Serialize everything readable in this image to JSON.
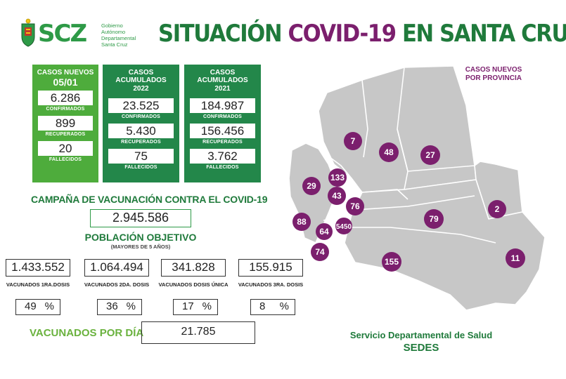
{
  "logo": {
    "mark": "SCZ",
    "gov_line1": "Gobierno",
    "gov_line2": "Autónomo",
    "gov_line3": "Departamental",
    "gov_line4": "Santa Cruz",
    "crest_icon": "coat-of-arms-icon"
  },
  "title": {
    "part1": "SITUACIÓN",
    "part2": "COVID-19",
    "part3": "EN SANTA CRUZ",
    "color_green": "#1f7a3b",
    "color_purple": "#7b1f6d"
  },
  "daily": {
    "header": "CASOS NUEVOS",
    "date": "05/01",
    "confirmed": "6.286",
    "confirmed_label": "CONFIRMADOS",
    "recovered": "899",
    "recovered_label": "RECUPERADOS",
    "deaths": "20",
    "deaths_label": "FALLECIDOS"
  },
  "acc2022": {
    "header": "CASOS ACUMULADOS",
    "year": "2022",
    "confirmed": "23.525",
    "confirmed_label": "CONFIRMADOS",
    "recovered": "5.430",
    "recovered_label": "RECUPERADOS",
    "deaths": "75",
    "deaths_label": "FALLECIDOS"
  },
  "acc2021": {
    "header": "CASOS ACUMULADOS",
    "year": "2021",
    "confirmed": "184.987",
    "confirmed_label": "CONFIRMADOS",
    "recovered": "156.456",
    "recovered_label": "RECUPERADOS",
    "deaths": "3.762",
    "deaths_label": "FALLECIDOS"
  },
  "vaccination": {
    "campaign_title": "CAMPAÑA DE VACUNACIÓN CONTRA EL COVID-19",
    "target_population": "2.945.586",
    "target_label": "POBLACIÓN OBJETIVO",
    "target_sub": "(MAYORES DE 5 AÑOS)",
    "doses": [
      {
        "value": "1.433.552",
        "label": "VACUNADOS 1RA.DOSIS",
        "percent": "49",
        "symbol": "%"
      },
      {
        "value": "1.064.494",
        "label": "VACUNADOS 2DA. DOSIS",
        "percent": "36",
        "symbol": "%"
      },
      {
        "value": "341.828",
        "label": "VACUNADOS DOSIS ÚNICA",
        "percent": "17",
        "symbol": "%"
      },
      {
        "value": "155.915",
        "label": "VACUNADOS 3RA. DOSIS",
        "percent": "8",
        "symbol": "%"
      }
    ],
    "per_day_label": "VACUNADOS POR DÍA",
    "per_day_value": "21.785"
  },
  "map": {
    "title_line1": "CASOS NUEVOS",
    "title_line2": "POR PROVINCIA",
    "fill_color": "#c7c7c7",
    "marker_color": "#7b1f6d",
    "markers": [
      "7",
      "48",
      "27",
      "133",
      "29",
      "43",
      "76",
      "88",
      "5450",
      "64",
      "79",
      "2",
      "74",
      "155",
      "11"
    ]
  },
  "footer": {
    "line1": "Servicio Departamental de Salud",
    "line2": "SEDES"
  }
}
